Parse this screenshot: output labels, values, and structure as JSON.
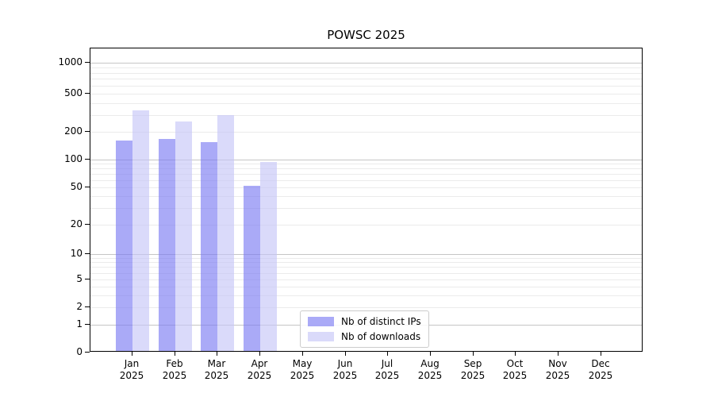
{
  "chart_data": {
    "type": "bar",
    "title": "POWSC 2025",
    "x_categories": [
      {
        "month": "Jan",
        "year": "2025"
      },
      {
        "month": "Feb",
        "year": "2025"
      },
      {
        "month": "Mar",
        "year": "2025"
      },
      {
        "month": "Apr",
        "year": "2025"
      },
      {
        "month": "May",
        "year": "2025"
      },
      {
        "month": "Jun",
        "year": "2025"
      },
      {
        "month": "Jul",
        "year": "2025"
      },
      {
        "month": "Aug",
        "year": "2025"
      },
      {
        "month": "Sep",
        "year": "2025"
      },
      {
        "month": "Oct",
        "year": "2025"
      },
      {
        "month": "Nov",
        "year": "2025"
      },
      {
        "month": "Dec",
        "year": "2025"
      }
    ],
    "series": [
      {
        "name": "Nb of distinct IPs",
        "color": "rgba(121,121,242,0.63)",
        "values": [
          155,
          160,
          150,
          50,
          null,
          null,
          null,
          null,
          null,
          null,
          null,
          null
        ]
      },
      {
        "name": "Nb of downloads",
        "color": "rgba(196,196,247,0.63)",
        "values": [
          320,
          245,
          290,
          90,
          null,
          null,
          null,
          null,
          null,
          null,
          null,
          null
        ]
      }
    ],
    "y_axis": {
      "scale": "symlog",
      "ticks": [
        {
          "value": 0,
          "frac": 0.0
        },
        {
          "value": 1,
          "frac": 0.0914
        },
        {
          "value": 2,
          "frac": 0.1488
        },
        {
          "value": 5,
          "frac": 0.2402
        },
        {
          "value": 10,
          "frac": 0.3238
        },
        {
          "value": 20,
          "frac": 0.4204
        },
        {
          "value": 50,
          "frac": 0.5431
        },
        {
          "value": 100,
          "frac": 0.6345
        },
        {
          "value": 200,
          "frac": 0.7258
        },
        {
          "value": 500,
          "frac": 0.8512
        },
        {
          "value": 1000,
          "frac": 0.953
        }
      ],
      "major_gridlines": [
        1,
        10,
        100,
        1000
      ],
      "minor_gridlines": [
        2,
        3,
        4,
        5,
        6,
        7,
        8,
        9,
        20,
        30,
        40,
        50,
        60,
        70,
        80,
        90,
        200,
        300,
        400,
        500,
        600,
        700,
        800,
        900
      ]
    },
    "grid": true,
    "legend_position": "inside-bottom-center",
    "colors": {
      "grid_major": "#c6c6c6",
      "grid_minor": "#ebebeb",
      "spine": "#000000",
      "legend_border": "#cccccc",
      "background": "#ffffff"
    }
  }
}
